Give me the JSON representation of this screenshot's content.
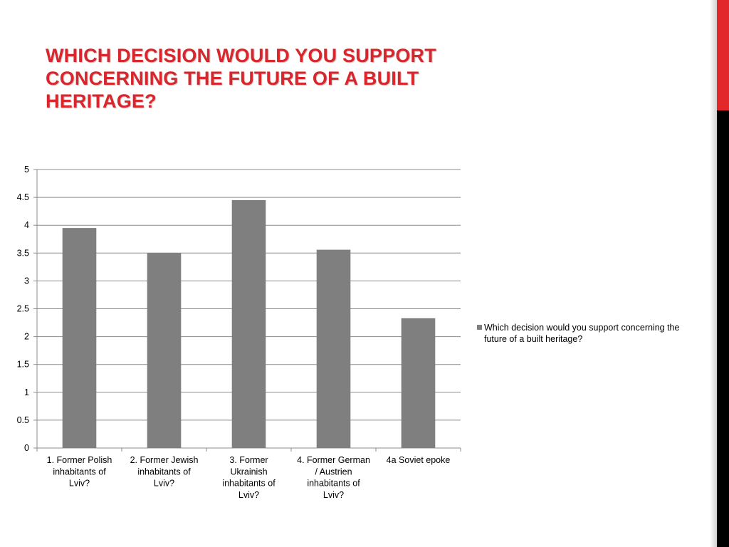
{
  "slide": {
    "title": "WHICH DECISION WOULD YOU SUPPORT CONCERNING THE FUTURE OF A BUILT HERITAGE?"
  },
  "colors": {
    "title": "#d9262d",
    "bar": "#7f7f7f",
    "gridline": "#8c8c8c",
    "accent_red": "#e3282c",
    "accent_black": "#000000"
  },
  "chart_data": {
    "type": "bar",
    "title": "",
    "xlabel": "",
    "ylabel": "",
    "ylim": [
      0,
      5
    ],
    "yticks": [
      "0",
      "0.5",
      "1",
      "1.5",
      "2",
      "2.5",
      "3",
      "3.5",
      "4",
      "4.5",
      "5"
    ],
    "grid": true,
    "legend_position": "right",
    "categories": [
      [
        "1. Former Polish",
        "inhabitants of",
        "Lviv?"
      ],
      [
        "2. Former Jewish",
        "inhabitants of",
        "Lviv?"
      ],
      [
        "3. Former",
        "Ukrainish",
        "inhabitants of",
        "Lviv?"
      ],
      [
        "4. Former German",
        "/ Austrien",
        "inhabitants of",
        "Lviv?"
      ],
      [
        "4a Soviet epoke"
      ]
    ],
    "series": [
      {
        "name": "Which decision would you support concerning the future of a built heritage?",
        "values": [
          3.95,
          3.5,
          4.45,
          3.56,
          2.33
        ]
      }
    ]
  }
}
